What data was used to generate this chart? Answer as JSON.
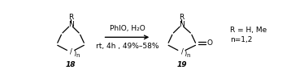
{
  "figsize": [
    3.74,
    0.97
  ],
  "dpi": 100,
  "bg_color": "#ffffff",
  "reactant_label": "18",
  "product_label": "19",
  "arrow_text1": "PhIO, H₂O",
  "arrow_text2": "rt, 4h , 49%–58%",
  "conditions_right": "R = H, Me\nn=1,2",
  "font_size_main": 6.5,
  "font_size_label": 6.5,
  "font_size_sub": 5.0,
  "lw": 0.9
}
